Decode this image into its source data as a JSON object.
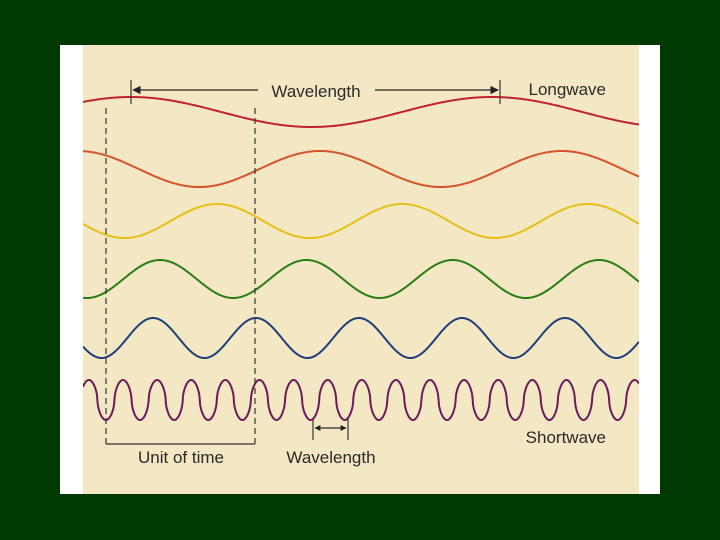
{
  "labels": {
    "wavelength_top": "Wavelength",
    "longwave": "Longwave",
    "shortwave": "Shortwave",
    "unit_of_time": "Unit of time",
    "wavelength_bottom": "Wavelength"
  },
  "colors": {
    "background": "#013a02",
    "frame": "#ffffff",
    "panel": "#f3e8c3",
    "guides": "#333333"
  },
  "waves": [
    {
      "name": "red-wave",
      "color": "#c2212f",
      "cycles_in_view": 1.54
    },
    {
      "name": "orange-wave",
      "color": "#d4552a",
      "cycles_in_view": 2.3
    },
    {
      "name": "yellow-wave",
      "color": "#e6c018",
      "cycles_in_view": 3.0
    },
    {
      "name": "green-wave",
      "color": "#2b7d17",
      "cycles_in_view": 3.8
    },
    {
      "name": "blue-wave",
      "color": "#1f3e7a",
      "cycles_in_view": 5.4
    },
    {
      "name": "purple-wave",
      "color": "#6e1a58",
      "cycles_in_view": 16.3
    }
  ]
}
